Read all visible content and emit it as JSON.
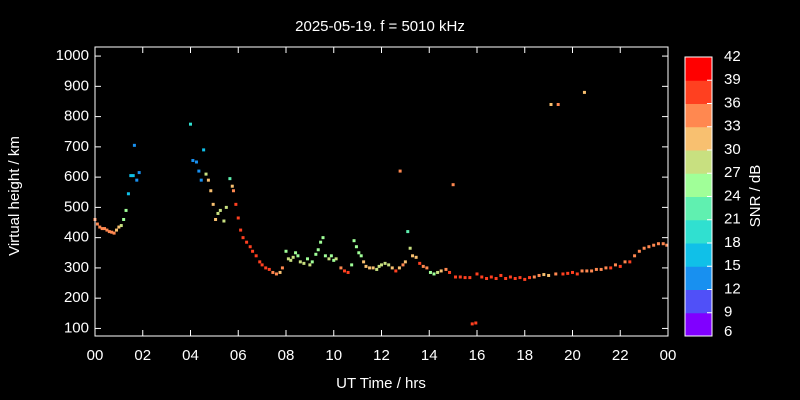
{
  "chart_data": {
    "type": "scatter",
    "title": "2025-05-19. f = 5010 kHz",
    "x_label": "UT Time / hrs",
    "y_label": "Virtual height / km",
    "colorbar_label": "SNR / dB",
    "xlim": [
      0,
      24
    ],
    "xticks": [
      {
        "value": 0,
        "label": "00"
      },
      {
        "value": 2,
        "label": "02"
      },
      {
        "value": 4,
        "label": "04"
      },
      {
        "value": 6,
        "label": "06"
      },
      {
        "value": 8,
        "label": "08"
      },
      10,
      12,
      14,
      16,
      18,
      20,
      22,
      {
        "value": 24,
        "label": "00"
      }
    ],
    "ylim": [
      75,
      1030
    ],
    "yticks": [
      100,
      200,
      300,
      400,
      500,
      600,
      700,
      800,
      900,
      1000
    ],
    "clim": [
      6,
      42
    ],
    "cticks": [
      6,
      9,
      12,
      15,
      18,
      21,
      24,
      27,
      30,
      33,
      36,
      39,
      42
    ],
    "colors": [
      "#8000ff",
      "#5050f8",
      "#1890f0",
      "#10c0e8",
      "#30e0d0",
      "#60f0b0",
      "#a0ff98",
      "#c8e080",
      "#f8c070",
      "#ff8850",
      "#ff4020",
      "#ff0000"
    ],
    "background": "#000000",
    "x": [
      0.0,
      0.1,
      0.2,
      0.3,
      0.4,
      0.5,
      0.6,
      0.7,
      0.8,
      0.9,
      1.0,
      1.1,
      1.2,
      1.3,
      1.4,
      1.5,
      1.6,
      1.65,
      1.75,
      1.85,
      4.0,
      4.1,
      4.25,
      4.35,
      4.45,
      4.55,
      4.65,
      4.75,
      4.85,
      4.95,
      5.05,
      5.15,
      5.25,
      5.4,
      5.5,
      5.65,
      5.75,
      5.8,
      5.9,
      6.0,
      6.1,
      6.2,
      6.35,
      6.5,
      6.6,
      6.75,
      6.9,
      7.0,
      7.15,
      7.3,
      7.45,
      7.6,
      7.75,
      7.85,
      8.0,
      8.1,
      8.2,
      8.3,
      8.4,
      8.5,
      8.6,
      8.75,
      8.9,
      9.0,
      9.1,
      9.25,
      9.35,
      9.45,
      9.55,
      9.65,
      9.8,
      9.9,
      10.0,
      10.1,
      10.3,
      10.45,
      10.6,
      10.75,
      10.85,
      10.95,
      11.05,
      11.15,
      11.25,
      11.35,
      11.5,
      11.65,
      11.8,
      11.9,
      12.0,
      12.15,
      12.3,
      12.45,
      12.6,
      12.75,
      12.78,
      12.9,
      13.0,
      13.1,
      13.2,
      13.3,
      13.45,
      13.6,
      13.75,
      13.9,
      14.05,
      14.2,
      14.35,
      14.5,
      14.7,
      14.85,
      15.0,
      15.1,
      15.3,
      15.5,
      15.7,
      15.8,
      15.95,
      16.0,
      16.2,
      16.4,
      16.6,
      16.8,
      17.0,
      17.2,
      17.4,
      17.6,
      17.8,
      18.0,
      18.2,
      18.4,
      18.6,
      18.8,
      19.0,
      19.1,
      19.3,
      19.4,
      19.6,
      19.8,
      20.0,
      20.2,
      20.4,
      20.5,
      20.6,
      20.8,
      21.0,
      21.2,
      21.4,
      21.6,
      21.8,
      22.0,
      22.2,
      22.4,
      22.6,
      22.8,
      23.0,
      23.2,
      23.4,
      23.6,
      23.8,
      23.95
    ],
    "values": [
      460,
      445,
      435,
      430,
      430,
      425,
      420,
      418,
      415,
      425,
      435,
      440,
      460,
      490,
      545,
      605,
      605,
      705,
      590,
      615,
      775,
      655,
      650,
      620,
      590,
      690,
      610,
      590,
      555,
      510,
      460,
      480,
      490,
      455,
      500,
      595,
      570,
      555,
      510,
      465,
      425,
      400,
      385,
      370,
      355,
      340,
      320,
      310,
      300,
      295,
      285,
      280,
      285,
      300,
      355,
      330,
      325,
      335,
      350,
      340,
      320,
      315,
      330,
      310,
      320,
      345,
      360,
      385,
      400,
      340,
      330,
      340,
      325,
      330,
      300,
      290,
      285,
      310,
      390,
      370,
      350,
      340,
      320,
      305,
      300,
      300,
      295,
      305,
      310,
      315,
      310,
      300,
      290,
      300,
      620,
      310,
      320,
      420,
      365,
      340,
      335,
      315,
      305,
      300,
      285,
      280,
      285,
      290,
      295,
      285,
      575,
      270,
      270,
      268,
      268,
      115,
      118,
      280,
      270,
      265,
      270,
      265,
      275,
      265,
      270,
      265,
      268,
      262,
      268,
      270,
      275,
      278,
      275,
      840,
      280,
      840,
      280,
      282,
      285,
      280,
      290,
      880,
      290,
      290,
      295,
      295,
      300,
      300,
      310,
      305,
      320,
      320,
      340,
      355,
      365,
      370,
      375,
      380,
      380,
      375
    ],
    "snr": [
      34,
      34,
      33,
      33,
      33,
      34,
      34,
      33,
      33,
      31,
      30,
      27,
      24,
      24,
      15,
      15,
      15,
      14,
      14,
      13,
      20,
      13,
      13,
      13,
      12,
      17,
      27,
      30,
      30,
      30,
      30,
      28,
      28,
      29,
      28,
      22,
      32,
      33,
      36,
      36,
      36,
      36,
      36,
      36,
      36,
      36,
      36,
      36,
      36,
      36,
      34,
      34,
      32,
      33,
      26,
      28,
      28,
      27,
      26,
      25,
      27,
      27,
      26,
      27,
      26,
      25,
      24,
      24,
      24,
      25,
      27,
      26,
      26,
      27,
      33,
      36,
      36,
      24,
      24,
      24,
      24,
      26,
      30,
      31,
      31,
      30,
      29,
      27,
      27,
      27,
      28,
      31,
      36,
      30,
      34,
      33,
      31,
      22,
      29,
      30,
      31,
      36,
      35,
      33,
      24,
      25,
      27,
      30,
      33,
      36,
      34,
      37,
      37,
      37,
      37,
      38,
      38,
      38,
      38,
      38,
      37,
      38,
      36,
      38,
      37,
      38,
      37,
      37,
      36,
      35,
      33,
      30,
      32,
      31,
      35,
      35,
      36,
      36,
      36,
      36,
      35,
      31,
      35,
      35,
      34,
      35,
      34,
      36,
      35,
      36,
      35,
      36,
      35,
      34,
      34,
      35,
      34,
      34,
      33,
      34
    ]
  }
}
